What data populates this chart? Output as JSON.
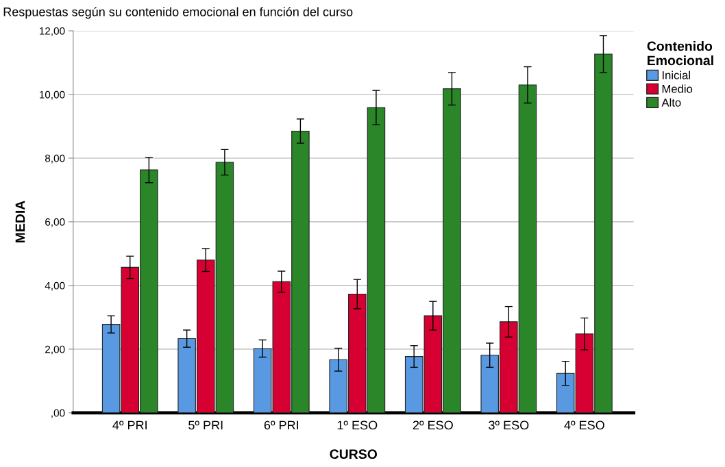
{
  "chart_data": {
    "type": "bar",
    "title": "Respuestas según su contenido emocional en función del curso",
    "xlabel": "CURSO",
    "ylabel": "MEDIA",
    "legend_title": "Contenido\nEmocional",
    "categories": [
      "4º PRI",
      "5º PRI",
      "6º PRI",
      "1º ESO",
      "2º ESO",
      "3º ESO",
      "4º ESO"
    ],
    "series": [
      {
        "name": "Inicial",
        "color": "#5899e2",
        "values": [
          2.78,
          2.33,
          2.02,
          1.67,
          1.77,
          1.81,
          1.24
        ],
        "errors": [
          0.27,
          0.27,
          0.27,
          0.36,
          0.34,
          0.38,
          0.38
        ]
      },
      {
        "name": "Medio",
        "color": "#d60032",
        "values": [
          4.57,
          4.8,
          4.12,
          3.73,
          3.05,
          2.86,
          2.48
        ],
        "errors": [
          0.35,
          0.36,
          0.33,
          0.46,
          0.45,
          0.48,
          0.5
        ]
      },
      {
        "name": "Alto",
        "color": "#2a8628",
        "values": [
          7.63,
          7.87,
          8.85,
          9.59,
          10.18,
          10.3,
          11.27
        ],
        "errors": [
          0.4,
          0.4,
          0.38,
          0.54,
          0.51,
          0.57,
          0.58
        ]
      }
    ],
    "ylim": [
      0,
      12
    ],
    "yticks": [
      {
        "value": 0,
        "label": ",00"
      },
      {
        "value": 2,
        "label": "2,00"
      },
      {
        "value": 4,
        "label": "4,00"
      },
      {
        "value": 6,
        "label": "6,00"
      },
      {
        "value": 8,
        "label": "8,00"
      },
      {
        "value": 10,
        "label": "10,00"
      },
      {
        "value": 12,
        "label": "12,00"
      }
    ],
    "grid": "y",
    "legend": "top right"
  }
}
